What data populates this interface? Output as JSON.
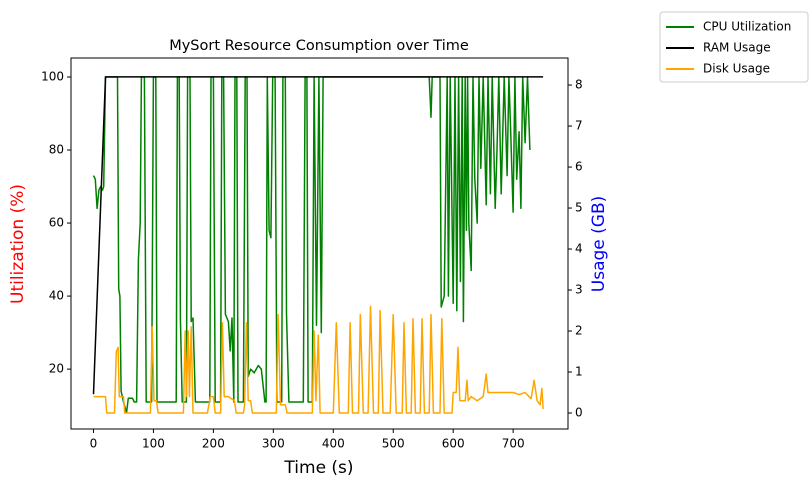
{
  "chart_data": {
    "type": "line",
    "title": "MySort Resource Consumption over Time",
    "xlabel": "Time (s)",
    "ylabel": "Utilization (%)",
    "ylabel_color": "red",
    "y2label": "Usage (GB)",
    "y2label_color": "blue",
    "xlim": [
      -37.5,
      791.5
    ],
    "xticks": [
      0,
      100,
      200,
      300,
      400,
      500,
      600,
      700
    ],
    "ylim": [
      3.6,
      105.2
    ],
    "yticks": [
      20,
      40,
      60,
      80,
      100
    ],
    "y2lim": [
      -0.39,
      8.66
    ],
    "y2ticks": [
      0,
      1,
      2,
      3,
      4,
      5,
      6,
      7,
      8
    ],
    "legend": "outside-upper-right",
    "series": [
      {
        "name": "CPU Utilization",
        "color": "green",
        "axis": "y",
        "x": [
          0,
          3,
          6,
          9,
          12,
          15,
          17,
          20,
          40,
          42,
          44,
          46,
          50,
          55,
          58,
          65,
          68,
          72,
          75,
          78,
          80,
          85,
          88,
          97,
          100,
          104,
          106,
          138,
          140,
          143,
          145,
          148,
          155,
          157,
          161,
          163,
          166,
          170,
          194,
          196,
          200,
          203,
          212,
          214,
          217,
          220,
          225,
          228,
          231,
          234,
          236,
          239,
          241,
          250,
          253,
          256,
          258,
          262,
          268,
          275,
          280,
          286,
          288,
          290,
          293,
          296,
          299,
          303,
          306,
          314,
          316,
          320,
          322,
          326,
          350,
          353,
          356,
          358,
          365,
          368,
          372,
          376,
          380,
          383,
          560,
          563,
          565,
          578,
          580,
          585,
          590,
          592,
          595,
          600,
          603,
          606,
          609,
          612,
          615,
          617,
          620,
          622,
          624,
          626,
          630,
          633,
          636,
          640,
          643,
          646,
          650,
          655,
          658,
          662,
          665,
          670,
          673,
          676,
          680,
          685,
          690,
          693,
          696,
          700,
          703,
          706,
          710,
          713,
          716,
          720,
          724,
          728
        ],
        "values": [
          73,
          72,
          64,
          69,
          70,
          69,
          70,
          100,
          100,
          42,
          40,
          14,
          11,
          8,
          12,
          12,
          11,
          11,
          50,
          60,
          100,
          100,
          11,
          11,
          100,
          100,
          11,
          11,
          100,
          100,
          34,
          11,
          11,
          100,
          100,
          33,
          34,
          11,
          11,
          100,
          100,
          11,
          11,
          100,
          100,
          35,
          33,
          25,
          34,
          11,
          100,
          100,
          11,
          11,
          100,
          100,
          18,
          20,
          19,
          21,
          20,
          11,
          11,
          100,
          58,
          56,
          100,
          100,
          11,
          11,
          100,
          100,
          35,
          11,
          11,
          100,
          100,
          11,
          11,
          100,
          32,
          100,
          30,
          100,
          100,
          89,
          100,
          100,
          37,
          40,
          100,
          40,
          100,
          38,
          100,
          36,
          100,
          44,
          100,
          33,
          100,
          58,
          100,
          60,
          47,
          100,
          72,
          60,
          100,
          75,
          100,
          65,
          100,
          68,
          100,
          64,
          80,
          100,
          68,
          100,
          73,
          100,
          85,
          63,
          100,
          72,
          85,
          64,
          100,
          82,
          100,
          80
        ]
      },
      {
        "name": "RAM Usage",
        "color": "black",
        "axis": "y2",
        "x": [
          0,
          20,
          750
        ],
        "values": [
          0.46,
          8.2,
          8.2
        ]
      },
      {
        "name": "Disk Usage",
        "color": "orange",
        "axis": "y2",
        "x": [
          0,
          10,
          20,
          22,
          35,
          38,
          41,
          43,
          50,
          52,
          95,
          98,
          101,
          105,
          108,
          150,
          153,
          155,
          158,
          160,
          163,
          166,
          190,
          195,
          200,
          203,
          212,
          215,
          218,
          225,
          235,
          238,
          250,
          252,
          255,
          258,
          262,
          265,
          305,
          308,
          312,
          320,
          323,
          365,
          368,
          371,
          375,
          378,
          400,
          405,
          410,
          425,
          428,
          432,
          442,
          445,
          450,
          458,
          462,
          467,
          475,
          478,
          483,
          495,
          500,
          505,
          515,
          518,
          522,
          530,
          533,
          537,
          545,
          548,
          552,
          560,
          563,
          567,
          578,
          581,
          585,
          598,
          600,
          605,
          608,
          611,
          620,
          623,
          625,
          630,
          640,
          650,
          655,
          658,
          670,
          680,
          690,
          700,
          710,
          720,
          730,
          735,
          740,
          745,
          748,
          750
        ],
        "values": [
          0.4,
          0.4,
          0.4,
          0,
          0,
          1.5,
          1.6,
          0.4,
          0.4,
          0,
          0,
          2.1,
          0.3,
          0.3,
          0,
          0,
          2.0,
          0.4,
          2.0,
          0.4,
          2.1,
          0,
          0,
          0.4,
          0.4,
          0,
          0,
          2.2,
          0.4,
          0.4,
          0.3,
          0,
          0,
          0.2,
          2.2,
          0.3,
          0.3,
          0,
          0,
          2.4,
          0.2,
          0.2,
          0,
          0,
          2.0,
          0.3,
          1.9,
          0,
          0,
          2.2,
          0,
          0,
          2.2,
          0,
          0,
          2.4,
          0,
          0,
          2.6,
          0,
          0,
          2.5,
          0,
          0,
          2.4,
          0,
          0,
          2.2,
          0,
          0,
          2.3,
          0,
          0,
          2.3,
          0,
          0,
          2.4,
          0,
          0,
          2.3,
          0,
          0,
          0.5,
          0.5,
          1.6,
          0.3,
          0.3,
          0.8,
          0.3,
          0.4,
          0.3,
          0.4,
          0.95,
          0.5,
          0.5,
          0.5,
          0.5,
          0.5,
          0.45,
          0.5,
          0.35,
          0.8,
          0.3,
          0.2,
          0.6,
          0.1
        ]
      }
    ]
  }
}
